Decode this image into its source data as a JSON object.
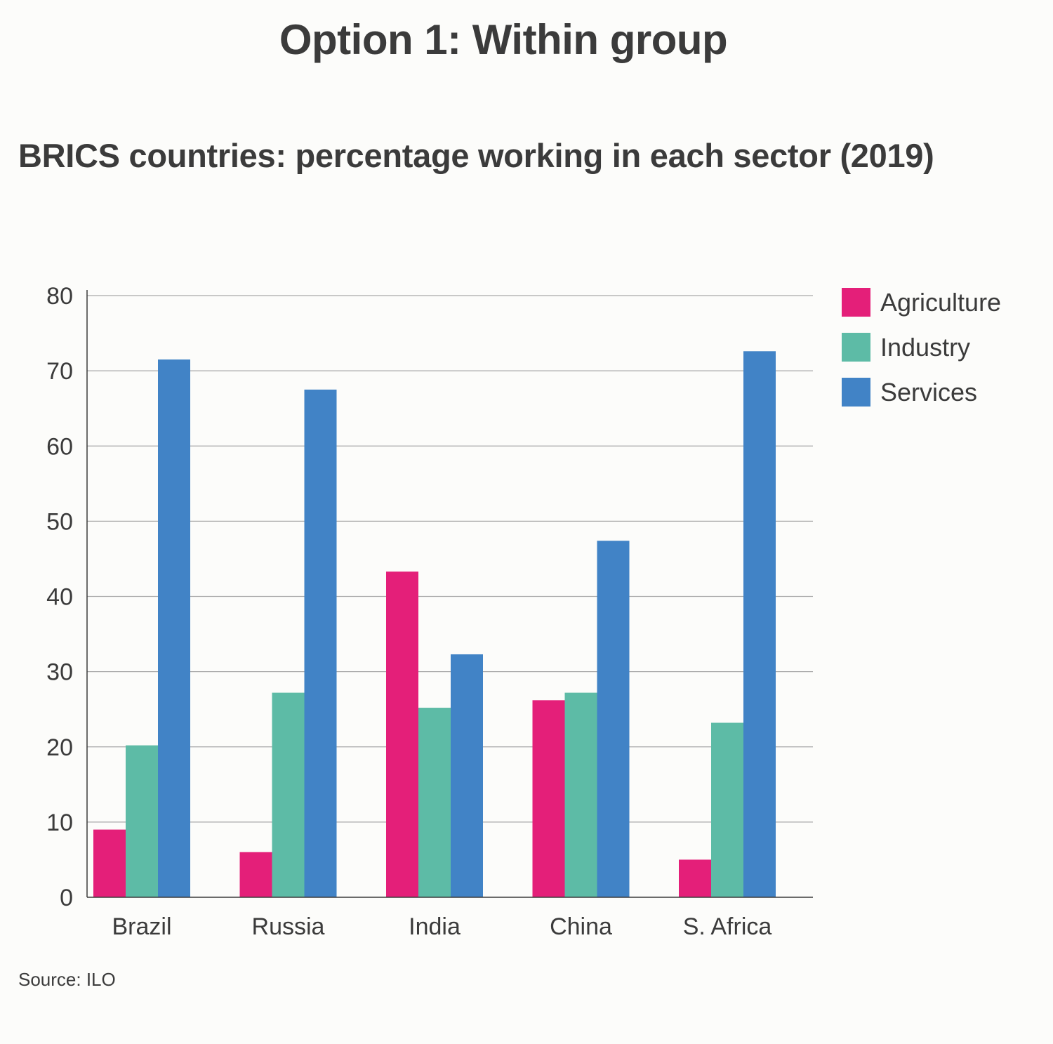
{
  "page": {
    "title": "Option 1: Within group",
    "source": "Source: ILO"
  },
  "chart_data": {
    "type": "bar",
    "title": "BRICS countries: percentage working in each sector (2019)",
    "xlabel": "",
    "ylabel": "",
    "ylim": [
      0,
      80
    ],
    "yticks": [
      0,
      10,
      20,
      30,
      40,
      50,
      60,
      70,
      80
    ],
    "grid": true,
    "legend_position": "top-right",
    "categories": [
      "Brazil",
      "Russia",
      "India",
      "China",
      "S. Africa"
    ],
    "series": [
      {
        "name": "Agriculture",
        "color": "#e41f79",
        "values": [
          9,
          6,
          43.3,
          26.2,
          5
        ]
      },
      {
        "name": "Industry",
        "color": "#5dbba6",
        "values": [
          20.2,
          27.2,
          25.2,
          27.2,
          23.2
        ]
      },
      {
        "name": "Services",
        "color": "#4183c6",
        "values": [
          71.5,
          67.5,
          32.3,
          47.4,
          72.6
        ]
      }
    ]
  }
}
